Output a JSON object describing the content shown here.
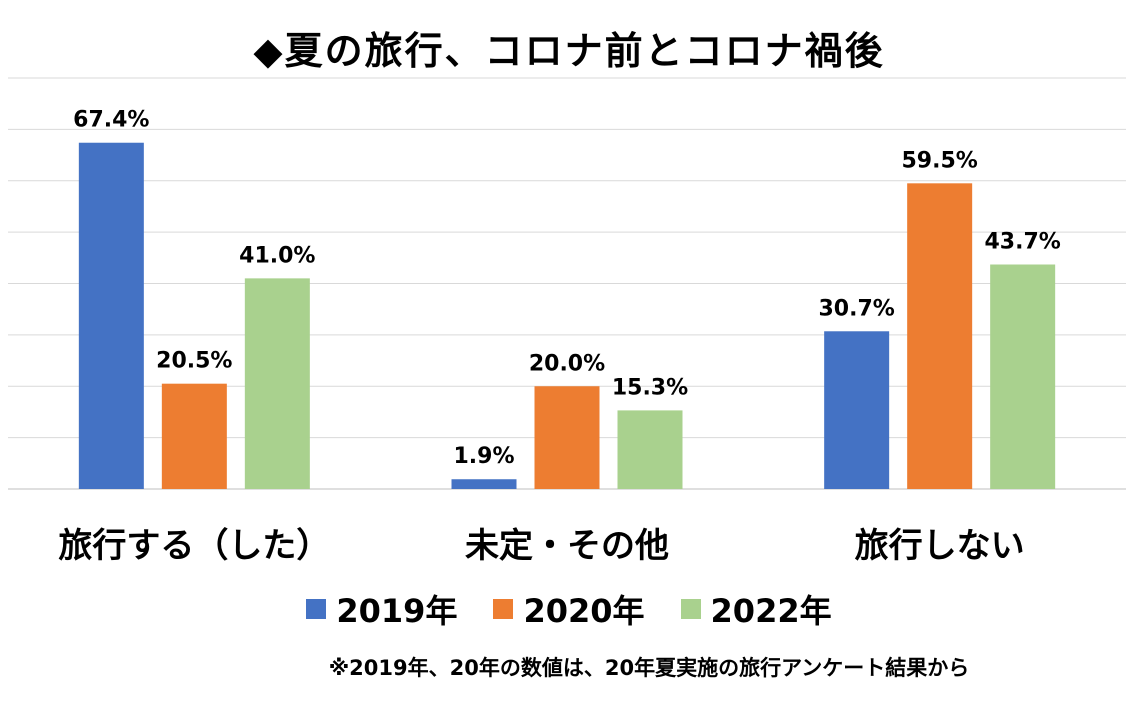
{
  "chart_data": {
    "type": "bar",
    "title": "◆夏の旅行、コロナ前とコロナ禍後",
    "categories": [
      "旅行する（した）",
      "未定・その他",
      "旅行しない"
    ],
    "series": [
      {
        "name": "2019年",
        "values": [
          67.4,
          1.9,
          30.7
        ],
        "labels": [
          "67.4%",
          "1.9%",
          "30.7%"
        ],
        "color": "#4472c4"
      },
      {
        "name": "2020年",
        "values": [
          20.5,
          20.0,
          59.5
        ],
        "labels": [
          "20.5%",
          "20.0%",
          "59.5%"
        ],
        "color": "#ed7d31"
      },
      {
        "name": "2022年",
        "values": [
          41.0,
          15.3,
          43.7
        ],
        "labels": [
          "41.0%",
          "15.3%",
          "43.7%"
        ],
        "color": "#a9d18e"
      }
    ],
    "ylim": [
      0,
      80
    ],
    "grid": true,
    "legend_position": "bottom",
    "footnote": "※2019年、20年の数値は、20年夏実施の旅行アンケート結果から"
  }
}
